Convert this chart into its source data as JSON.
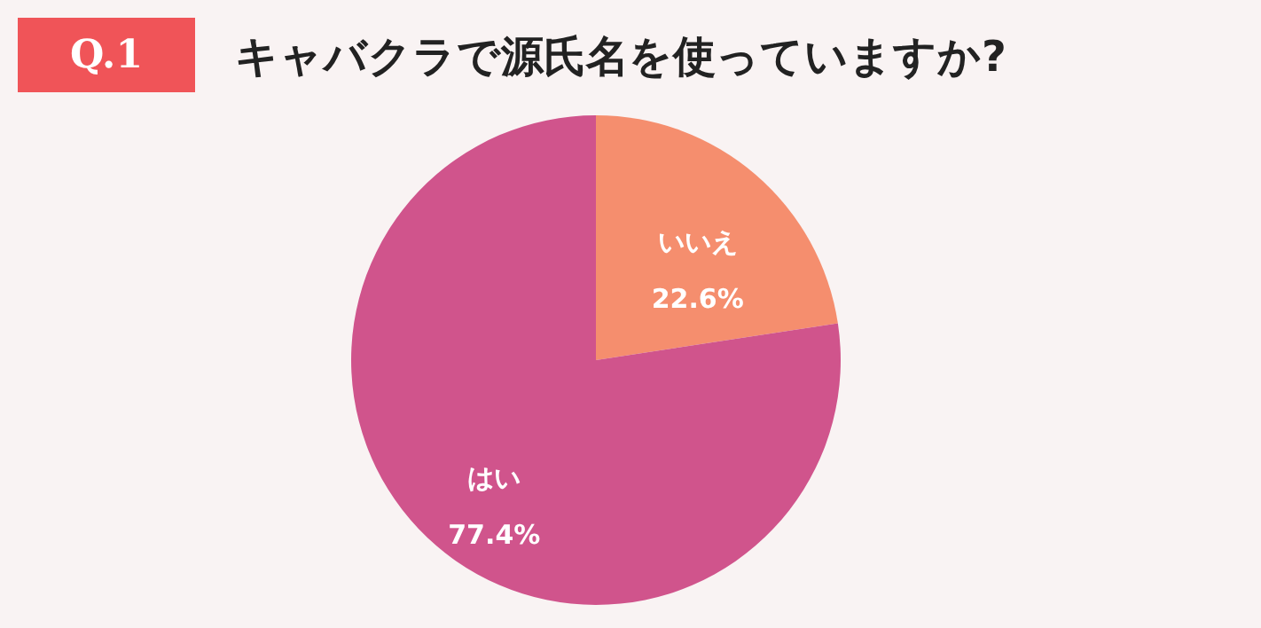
{
  "chart_data": {
    "type": "pie",
    "title": "キャバクラで源氏名を使っていますか?",
    "annotations": [
      "Q.1"
    ],
    "categories": [
      "いいえ",
      "はい"
    ],
    "values": [
      22.6,
      77.4
    ],
    "colors": [
      "#f58e6e",
      "#d0548c"
    ],
    "value_labels": [
      "22.6%",
      "77.4%"
    ]
  }
}
